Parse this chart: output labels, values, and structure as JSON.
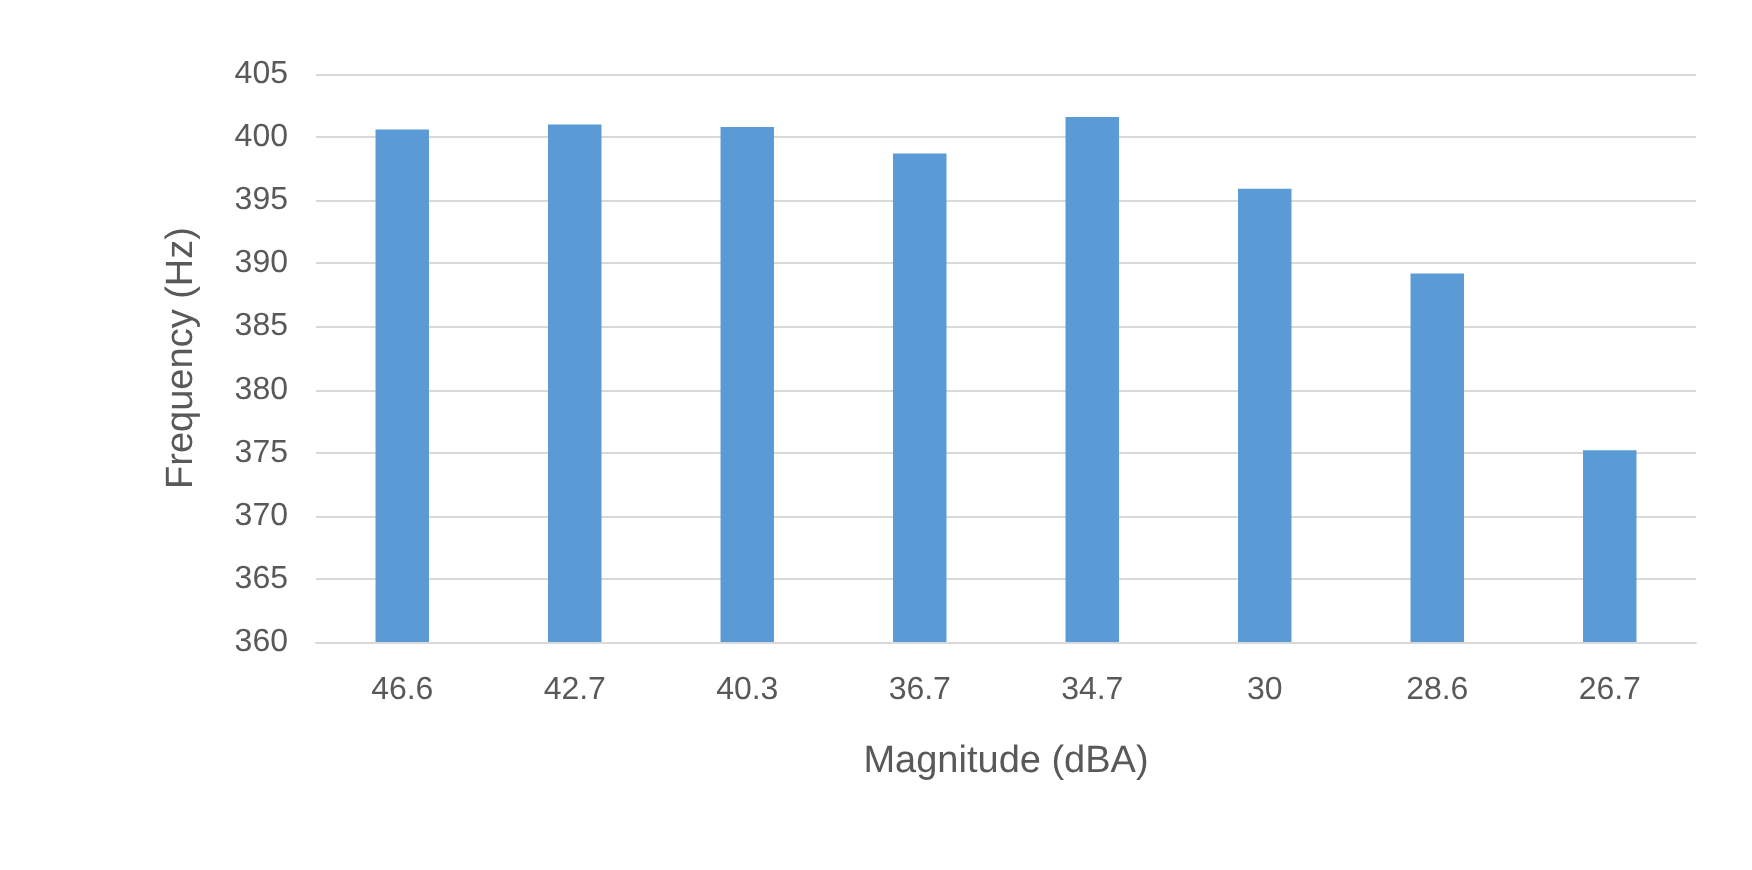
{
  "chart_data": {
    "type": "bar",
    "xlabel": "Magnitude (dBA)",
    "ylabel": "Frequency (Hz)",
    "categories": [
      "46.6",
      "42.7",
      "40.3",
      "36.7",
      "34.7",
      "30",
      "28.6",
      "26.7"
    ],
    "values": [
      400.6,
      401.0,
      400.8,
      398.7,
      401.6,
      395.9,
      389.2,
      375.2
    ],
    "color": "#5b9bd5",
    "ylim": [
      360,
      405
    ],
    "yticks": [
      360,
      365,
      370,
      375,
      380,
      385,
      390,
      395,
      400,
      405
    ],
    "grid": "y"
  }
}
